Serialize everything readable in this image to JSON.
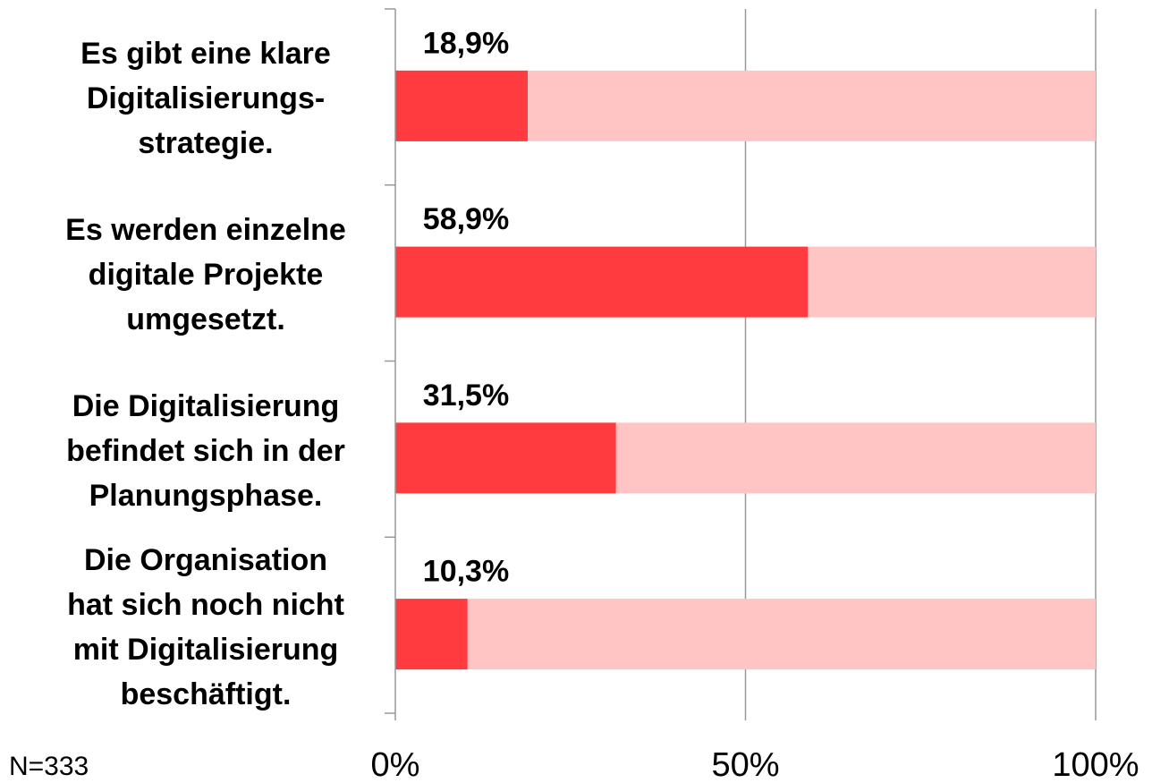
{
  "chart_data": {
    "type": "bar",
    "orientation": "horizontal",
    "note": "N=333",
    "categories": [
      "Es gibt eine klare\nDigitalisierungs-\nstrategie.",
      "Es werden einzelne\ndigitale Projekte\numgesetzt.",
      "Die Digitalisierung\nbefindet sich in der\nPlanungsphase.",
      "Die Organisation\nhat sich noch nicht\nmit Digitalisierung\nbeschäftigt."
    ],
    "values": [
      18.9,
      58.9,
      31.5,
      10.3
    ],
    "value_labels": [
      "18,9%",
      "58,9%",
      "31,5%",
      "10,3%"
    ],
    "color": "#ff3b3f",
    "background_color": "#ffc4c4",
    "xlim": [
      0,
      100
    ],
    "xticks": [
      {
        "value": 0,
        "label": "0%"
      },
      {
        "value": 50,
        "label": "50%"
      },
      {
        "value": 100,
        "label": "100%"
      }
    ],
    "grid": true
  }
}
